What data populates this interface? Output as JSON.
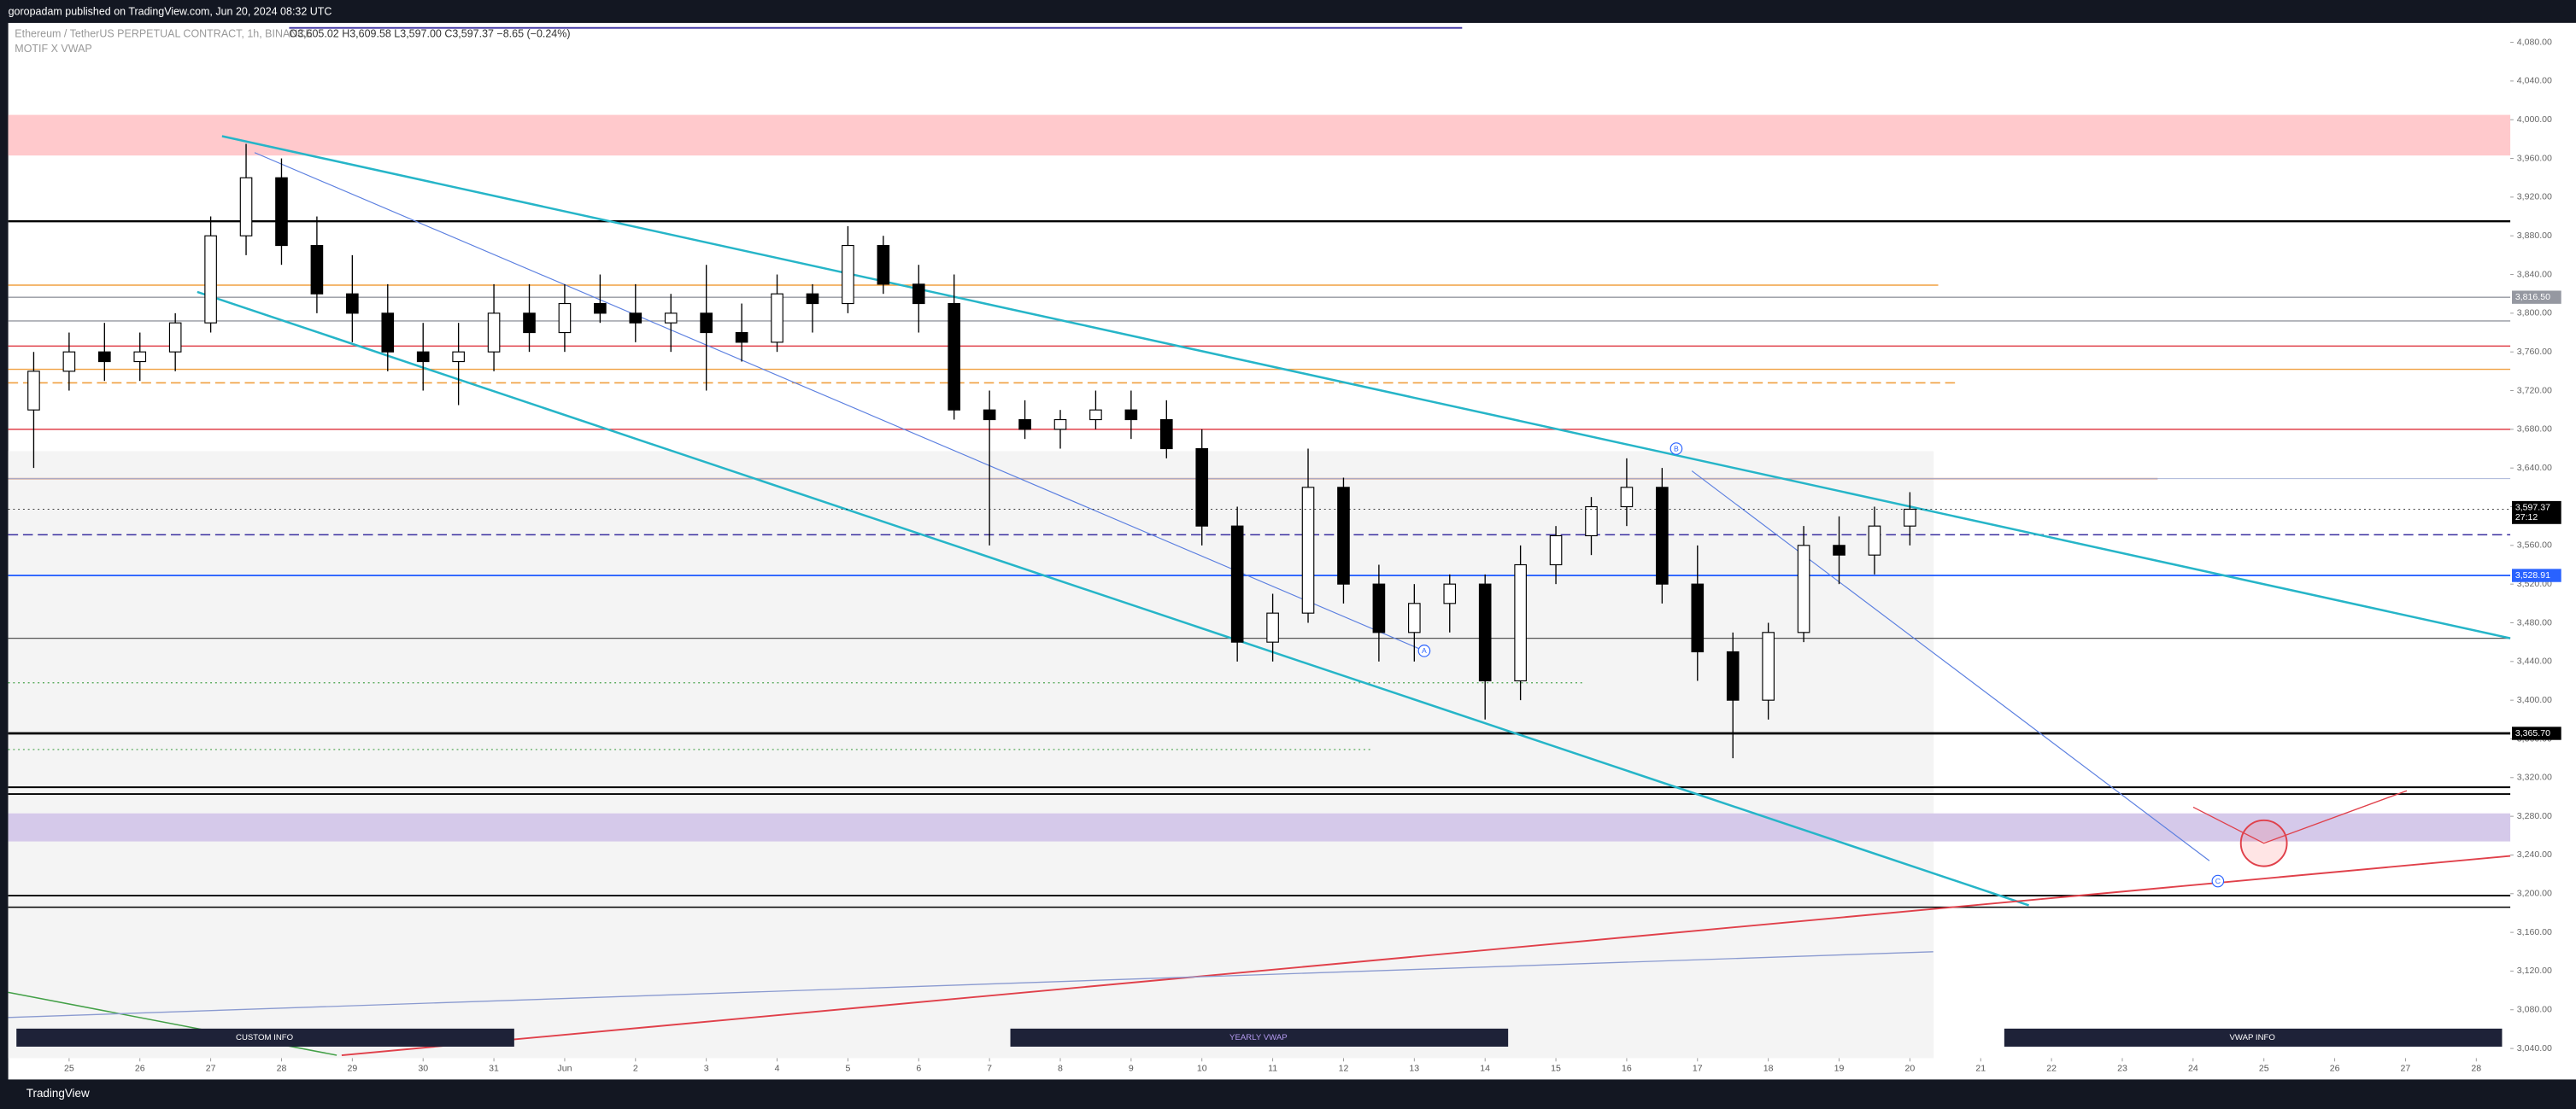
{
  "header": {
    "publisher": "goropadam published on TradingView.com, Jun 20, 2024 08:32 UTC",
    "symbol": "Ethereum / TetherUS PERPETUAL CONTRACT, 1h, BINANCE",
    "ohlc": "O3,605.02 H3,609.58 L3,597.00 C3,597.37 −8.65 (−0.24%)",
    "indicator": "MOTIF X VWAP"
  },
  "footer": {
    "brand": "TradingView"
  },
  "panels": [
    "CUSTOM INFO",
    "YEARLY VWAP",
    "VWAP INFO"
  ],
  "chart_data": {
    "type": "candlestick",
    "x": [
      -0.5,
      0,
      0.5,
      1,
      1.5,
      2,
      2.5,
      3,
      3.5,
      4,
      4.5,
      5,
      5.5,
      6,
      6.5,
      7,
      7.5,
      8,
      8.5,
      9,
      9.5,
      10,
      10.5,
      11,
      11.5,
      12,
      12.5,
      13,
      13.5,
      14,
      14.5,
      15,
      15.5,
      16,
      16.5,
      17,
      17.5,
      18,
      18.5,
      19,
      19.5,
      20,
      20.5,
      21,
      21.5,
      22,
      22.5,
      23,
      23.5,
      24,
      24.5,
      25,
      25.5,
      26
    ],
    "open": [
      3700,
      3740,
      3760,
      3750,
      3760,
      3790,
      3880,
      3940,
      3870,
      3820,
      3800,
      3760,
      3750,
      3760,
      3800,
      3780,
      3810,
      3800,
      3790,
      3800,
      3780,
      3770,
      3820,
      3810,
      3870,
      3830,
      3810,
      3700,
      3690,
      3680,
      3690,
      3700,
      3690,
      3660,
      3580,
      3460,
      3490,
      3620,
      3520,
      3470,
      3500,
      3520,
      3420,
      3540,
      3570,
      3600,
      3620,
      3520,
      3450,
      3400,
      3470,
      3560,
      3550,
      3580
    ],
    "high": [
      3760,
      3780,
      3790,
      3780,
      3800,
      3900,
      3975,
      3960,
      3900,
      3860,
      3830,
      3790,
      3790,
      3830,
      3830,
      3830,
      3840,
      3830,
      3820,
      3850,
      3810,
      3840,
      3830,
      3890,
      3880,
      3850,
      3840,
      3720,
      3710,
      3700,
      3720,
      3720,
      3710,
      3680,
      3600,
      3510,
      3660,
      3630,
      3540,
      3520,
      3530,
      3530,
      3560,
      3580,
      3610,
      3650,
      3640,
      3560,
      3470,
      3480,
      3580,
      3590,
      3600,
      3615
    ],
    "low": [
      3640,
      3720,
      3730,
      3730,
      3740,
      3780,
      3860,
      3850,
      3800,
      3770,
      3740,
      3720,
      3705,
      3740,
      3760,
      3760,
      3790,
      3770,
      3760,
      3720,
      3750,
      3760,
      3780,
      3800,
      3820,
      3780,
      3690,
      3560,
      3670,
      3660,
      3680,
      3670,
      3650,
      3560,
      3440,
      3440,
      3480,
      3500,
      3440,
      3440,
      3470,
      3380,
      3400,
      3520,
      3550,
      3580,
      3500,
      3420,
      3340,
      3380,
      3460,
      3520,
      3530,
      3560
    ],
    "close": [
      3740,
      3760,
      3750,
      3760,
      3790,
      3880,
      3940,
      3870,
      3820,
      3800,
      3760,
      3750,
      3760,
      3800,
      3780,
      3810,
      3800,
      3790,
      3800,
      3780,
      3770,
      3820,
      3810,
      3870,
      3830,
      3810,
      3700,
      3690,
      3680,
      3690,
      3700,
      3690,
      3660,
      3580,
      3460,
      3490,
      3620,
      3520,
      3470,
      3500,
      3520,
      3420,
      3540,
      3570,
      3600,
      3620,
      3520,
      3450,
      3400,
      3470,
      3560,
      3550,
      3580,
      3597.37
    ],
    "xlim": [
      -0.86,
      34.48
    ],
    "ylim": [
      3030,
      4100
    ],
    "xticks": [
      {
        "value": 0,
        "label": "25"
      },
      {
        "value": 1,
        "label": "26"
      },
      {
        "value": 2,
        "label": "27"
      },
      {
        "value": 3,
        "label": "28"
      },
      {
        "value": 4,
        "label": "29"
      },
      {
        "value": 5,
        "label": "30"
      },
      {
        "value": 6,
        "label": "31"
      },
      {
        "value": 7,
        "label": "Jun"
      },
      {
        "value": 8,
        "label": "2"
      },
      {
        "value": 9,
        "label": "3"
      },
      {
        "value": 10,
        "label": "4"
      },
      {
        "value": 11,
        "label": "5"
      },
      {
        "value": 12,
        "label": "6"
      },
      {
        "value": 13,
        "label": "7"
      },
      {
        "value": 14,
        "label": "8"
      },
      {
        "value": 15,
        "label": "9"
      },
      {
        "value": 16,
        "label": "10"
      },
      {
        "value": 17,
        "label": "11"
      },
      {
        "value": 18,
        "label": "12"
      },
      {
        "value": 19,
        "label": "13"
      },
      {
        "value": 20,
        "label": "14"
      },
      {
        "value": 21,
        "label": "15"
      },
      {
        "value": 22,
        "label": "16"
      },
      {
        "value": 23,
        "label": "17"
      },
      {
        "value": 24,
        "label": "18"
      },
      {
        "value": 25,
        "label": "19"
      },
      {
        "value": 26,
        "label": "20"
      },
      {
        "value": 27,
        "label": "21"
      },
      {
        "value": 28,
        "label": "22"
      },
      {
        "value": 29,
        "label": "23"
      },
      {
        "value": 30,
        "label": "24"
      },
      {
        "value": 31,
        "label": "25"
      },
      {
        "value": 32,
        "label": "26"
      },
      {
        "value": 33,
        "label": "27"
      },
      {
        "value": 34,
        "label": "28"
      }
    ],
    "yticks": [
      {
        "value": 3040,
        "label": "3,040.00"
      },
      {
        "value": 3080,
        "label": "3,080.00"
      },
      {
        "value": 3120,
        "label": "3,120.00"
      },
      {
        "value": 3160,
        "label": "3,160.00"
      },
      {
        "value": 3200,
        "label": "3,200.00"
      },
      {
        "value": 3240,
        "label": "3,240.00"
      },
      {
        "value": 3280,
        "label": "3,280.00"
      },
      {
        "value": 3320,
        "label": "3,320.00"
      },
      {
        "value": 3360,
        "label": "3,360.00"
      },
      {
        "value": 3400,
        "label": "3,400.00"
      },
      {
        "value": 3440,
        "label": "3,440.00"
      },
      {
        "value": 3480,
        "label": "3,480.00"
      },
      {
        "value": 3520,
        "label": "3,520.00"
      },
      {
        "value": 3560,
        "label": "3,560.00"
      },
      {
        "value": 3600,
        "label": "3,600.00"
      },
      {
        "value": 3640,
        "label": "3,640.00"
      },
      {
        "value": 3680,
        "label": "3,680.00"
      },
      {
        "value": 3720,
        "label": "3,720.00"
      },
      {
        "value": 3760,
        "label": "3,760.00"
      },
      {
        "value": 3800,
        "label": "3,800.00"
      },
      {
        "value": 3840,
        "label": "3,840.00"
      },
      {
        "value": 3880,
        "label": "3,880.00"
      },
      {
        "value": 3920,
        "label": "3,920.00"
      },
      {
        "value": 3960,
        "label": "3,960.00"
      },
      {
        "value": 4000,
        "label": "4,000.00"
      },
      {
        "value": 4040,
        "label": "4,040.00"
      },
      {
        "value": 4080,
        "label": "4,080.00"
      }
    ],
    "zones": [
      {
        "top": 4005,
        "bottom": 3963,
        "color": "#ffc9cc"
      },
      {
        "top": 3283,
        "bottom": 3254,
        "color": "#d5c9ea"
      }
    ],
    "levels": [
      {
        "price": 3895,
        "color": "#000000",
        "width": 1.2
      },
      {
        "price": 3829,
        "color": "#f0a040",
        "width": 0.8,
        "end": 26.4
      },
      {
        "price": 3816.5,
        "color": "#9598a1",
        "width": 0.7,
        "label": "3,816.50"
      },
      {
        "price": 3792,
        "color": "#9598a1",
        "width": 0.7
      },
      {
        "price": 3766,
        "color": "#e0404a",
        "width": 0.8
      },
      {
        "price": 3742,
        "color": "#f0a040",
        "width": 0.7
      },
      {
        "price": 3728,
        "color": "#f0a040",
        "width": 0.8,
        "dash": true,
        "end": 26.7
      },
      {
        "price": 3680,
        "color": "#e0404a",
        "width": 0.8
      },
      {
        "price": 3629,
        "color": "#c0603a",
        "width": 0.8,
        "end": 29.5
      },
      {
        "price": 3629,
        "color": "#aab4d8",
        "width": 0.5
      },
      {
        "price": 3571,
        "color": "#3a2fa0",
        "width": 0.8,
        "dash": true
      },
      {
        "price": 3528.91,
        "color": "#2962ff",
        "width": 1,
        "label": "3,528.91"
      },
      {
        "price": 3464,
        "color": "#555555",
        "width": 0.6
      },
      {
        "price": 3418,
        "color": "#43a047",
        "width": 0.6,
        "dot": true,
        "end": 21.4
      },
      {
        "price": 3365.7,
        "color": "#000000",
        "width": 1.4,
        "label": "3,365.70"
      },
      {
        "price": 3349,
        "color": "#43a047",
        "width": 0.6,
        "dot": true,
        "end": 18.4
      },
      {
        "price": 3310,
        "color": "#000000",
        "width": 1
      },
      {
        "price": 3303,
        "color": "#000000",
        "width": 1
      },
      {
        "price": 3198,
        "color": "#000000",
        "width": 1
      },
      {
        "price": 3186,
        "color": "#000000",
        "width": 0.8
      }
    ],
    "trendlines": [
      {
        "x": [
          2.16,
          34.48
        ],
        "y": [
          3983,
          3464
        ],
        "color": "#26b5c8",
        "width": 1.3
      },
      {
        "x": [
          1.81,
          27.68
        ],
        "y": [
          3822,
          3188
        ],
        "color": "#26b5c8",
        "width": 1.3
      },
      {
        "x": [
          3.85,
          34.48
        ],
        "y": [
          3033,
          3239
        ],
        "color": "#e0404a",
        "width": 1
      },
      {
        "x": [
          2.62,
          19.14
        ],
        "y": [
          3966,
          3451
        ],
        "color": "#5b7fe0",
        "width": 0.6
      },
      {
        "x": [
          22.92,
          30.23
        ],
        "y": [
          3637,
          3234
        ],
        "color": "#5b7fe0",
        "width": 0.6
      },
      {
        "x": [
          -0.86,
          3.78
        ],
        "y": [
          3098,
          3033
        ],
        "color": "#43a047",
        "width": 0.8
      },
      {
        "x": [
          -0.86,
          26.33
        ],
        "y": [
          3072,
          3140
        ],
        "color": "#8a9ad0",
        "width": 0.7
      }
    ],
    "current": {
      "price": 3597.37,
      "label": "3,597.37",
      "timer": "27:12"
    },
    "annotations": [
      {
        "text": "A",
        "x": 19.14,
        "y": 3451
      },
      {
        "text": "B",
        "x": 22.7,
        "y": 3660
      },
      {
        "text": "C",
        "x": 30.35,
        "y": 3213
      }
    ]
  }
}
